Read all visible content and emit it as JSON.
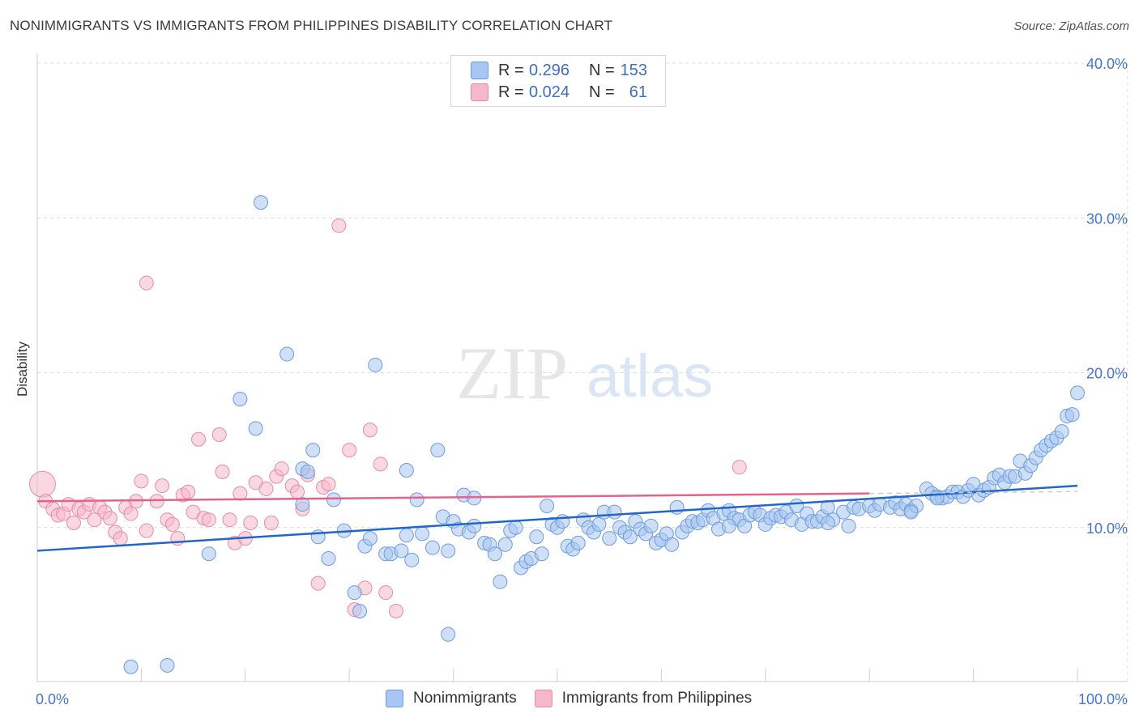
{
  "title": "NONIMMIGRANTS VS IMMIGRANTS FROM PHILIPPINES DISABILITY CORRELATION CHART",
  "source": "Source: ZipAtlas.com",
  "watermark": {
    "zip": "ZIP",
    "atlas": "atlas"
  },
  "legend_top": {
    "rows": [
      {
        "r_label": "R =",
        "r_value": "0.296",
        "n_label": "N =",
        "n_value": "153",
        "color": "#a8c6ef"
      },
      {
        "r_label": "R =",
        "r_value": "0.024",
        "n_label": "N =",
        "n_value": "61",
        "color": "#f5b8cb"
      }
    ]
  },
  "legend_bottom": {
    "items": [
      {
        "label": "Nonimmigrants",
        "color": "#a8c6ef"
      },
      {
        "label": "Immigrants from Philippines",
        "color": "#f5b8cb"
      }
    ]
  },
  "colors": {
    "blue_fill": "#a8c6ef",
    "blue_stroke": "#6d9be0",
    "blue_line": "#2166c9",
    "pink_fill": "#f5b8cb",
    "pink_stroke": "#e88aa8",
    "pink_line": "#e5628e",
    "tick_label": "#4476c9",
    "grid": "#dcdcdc"
  },
  "chart_data": {
    "type": "scatter",
    "xlabel": "",
    "ylabel": "Disability",
    "xlim": [
      0,
      100
    ],
    "ylim": [
      0,
      40
    ],
    "x_tick_labels": [
      "0.0%",
      "100.0%"
    ],
    "y_ticks": [
      10,
      20,
      30,
      40
    ],
    "y_tick_labels": [
      "10.0%",
      "20.0%",
      "30.0%",
      "40.0%"
    ],
    "grid": true,
    "series": [
      {
        "name": "Nonimmigrants",
        "trend": {
          "x": [
            0,
            100
          ],
          "y": [
            8.5,
            12.7
          ]
        },
        "points": [
          [
            9.0,
            1.0
          ],
          [
            12.5,
            1.1
          ],
          [
            21.5,
            31.0
          ],
          [
            24.0,
            21.2
          ],
          [
            32.5,
            20.5
          ],
          [
            19.5,
            18.3
          ],
          [
            21.0,
            16.4
          ],
          [
            26.5,
            15.0
          ],
          [
            38.5,
            15.0
          ],
          [
            25.5,
            13.8
          ],
          [
            35.5,
            13.7
          ],
          [
            16.5,
            8.3
          ],
          [
            25.5,
            11.5
          ],
          [
            26.0,
            13.6
          ],
          [
            28.5,
            11.8
          ],
          [
            36.5,
            11.8
          ],
          [
            41.0,
            12.1
          ],
          [
            42.0,
            11.9
          ],
          [
            27.0,
            9.4
          ],
          [
            28.0,
            8.0
          ],
          [
            29.5,
            9.8
          ],
          [
            30.5,
            5.8
          ],
          [
            31.0,
            4.6
          ],
          [
            31.5,
            8.8
          ],
          [
            32.0,
            9.3
          ],
          [
            33.5,
            8.3
          ],
          [
            34.0,
            8.3
          ],
          [
            35.0,
            8.5
          ],
          [
            35.5,
            9.5
          ],
          [
            36.0,
            7.9
          ],
          [
            37.0,
            9.6
          ],
          [
            38.0,
            8.7
          ],
          [
            39.0,
            10.7
          ],
          [
            39.5,
            8.5
          ],
          [
            39.5,
            3.1
          ],
          [
            40.0,
            10.4
          ],
          [
            40.5,
            9.9
          ],
          [
            41.5,
            9.7
          ],
          [
            42.0,
            10.1
          ],
          [
            43.0,
            9.0
          ],
          [
            43.5,
            8.9
          ],
          [
            44.0,
            8.3
          ],
          [
            44.5,
            6.5
          ],
          [
            45.0,
            8.9
          ],
          [
            45.5,
            9.8
          ],
          [
            46.0,
            10.0
          ],
          [
            46.5,
            7.4
          ],
          [
            47.0,
            7.8
          ],
          [
            47.5,
            8.0
          ],
          [
            48.0,
            9.4
          ],
          [
            48.5,
            8.3
          ],
          [
            49.0,
            11.4
          ],
          [
            49.5,
            10.2
          ],
          [
            50.0,
            10.0
          ],
          [
            50.5,
            10.4
          ],
          [
            51.0,
            8.8
          ],
          [
            51.5,
            8.6
          ],
          [
            52.0,
            9.0
          ],
          [
            52.5,
            10.5
          ],
          [
            53.0,
            10.0
          ],
          [
            53.5,
            9.7
          ],
          [
            54.0,
            10.2
          ],
          [
            54.5,
            11.0
          ],
          [
            55.0,
            9.3
          ],
          [
            55.5,
            11.0
          ],
          [
            56.0,
            10.0
          ],
          [
            56.5,
            9.7
          ],
          [
            57.0,
            9.4
          ],
          [
            57.5,
            10.4
          ],
          [
            58.0,
            9.9
          ],
          [
            58.5,
            9.6
          ],
          [
            59.0,
            10.1
          ],
          [
            59.5,
            9.0
          ],
          [
            60.0,
            9.2
          ],
          [
            60.5,
            9.6
          ],
          [
            61.0,
            8.9
          ],
          [
            61.5,
            11.3
          ],
          [
            62.0,
            9.7
          ],
          [
            62.5,
            10.1
          ],
          [
            63.0,
            10.4
          ],
          [
            63.5,
            10.3
          ],
          [
            64.0,
            10.5
          ],
          [
            64.5,
            11.1
          ],
          [
            65.0,
            10.6
          ],
          [
            65.5,
            9.9
          ],
          [
            66.0,
            10.9
          ],
          [
            66.5,
            11.1
          ],
          [
            67.0,
            10.6
          ],
          [
            67.5,
            10.5
          ],
          [
            68.0,
            10.1
          ],
          [
            68.5,
            10.8
          ],
          [
            69.0,
            11.0
          ],
          [
            69.5,
            10.8
          ],
          [
            70.0,
            10.2
          ],
          [
            70.5,
            10.6
          ],
          [
            71.0,
            10.8
          ],
          [
            71.5,
            10.7
          ],
          [
            72.0,
            11.0
          ],
          [
            72.5,
            10.5
          ],
          [
            73.0,
            11.4
          ],
          [
            73.5,
            10.2
          ],
          [
            74.0,
            10.9
          ],
          [
            74.5,
            10.4
          ],
          [
            75.0,
            10.4
          ],
          [
            75.5,
            10.7
          ],
          [
            76.0,
            11.3
          ],
          [
            76.5,
            10.5
          ],
          [
            77.5,
            11.0
          ],
          [
            78.0,
            10.1
          ],
          [
            78.5,
            11.3
          ],
          [
            79.0,
            11.2
          ],
          [
            80.0,
            11.4
          ],
          [
            80.5,
            11.1
          ],
          [
            81.0,
            11.5
          ],
          [
            82.0,
            11.3
          ],
          [
            82.5,
            11.6
          ],
          [
            83.0,
            11.2
          ],
          [
            83.5,
            11.5
          ],
          [
            84.0,
            11.1
          ],
          [
            84.5,
            11.4
          ],
          [
            85.5,
            12.5
          ],
          [
            86.0,
            12.2
          ],
          [
            86.5,
            12.0
          ],
          [
            87.0,
            11.9
          ],
          [
            87.5,
            12.0
          ],
          [
            88.0,
            12.3
          ],
          [
            88.5,
            12.3
          ],
          [
            89.0,
            12.0
          ],
          [
            89.5,
            12.4
          ],
          [
            90.0,
            12.8
          ],
          [
            90.5,
            12.1
          ],
          [
            91.0,
            12.4
          ],
          [
            91.5,
            12.6
          ],
          [
            92.0,
            13.2
          ],
          [
            92.5,
            13.4
          ],
          [
            93.0,
            12.9
          ],
          [
            93.5,
            13.3
          ],
          [
            94.0,
            13.3
          ],
          [
            94.5,
            14.3
          ],
          [
            95.0,
            13.5
          ],
          [
            95.5,
            14.0
          ],
          [
            96.0,
            14.5
          ],
          [
            96.5,
            15.0
          ],
          [
            97.0,
            15.3
          ],
          [
            97.5,
            15.6
          ],
          [
            98.0,
            15.8
          ],
          [
            98.5,
            16.2
          ],
          [
            99.0,
            17.2
          ],
          [
            99.5,
            17.3
          ],
          [
            100.0,
            18.7
          ],
          [
            86.5,
            11.9
          ],
          [
            84.0,
            11.0
          ],
          [
            76.0,
            10.3
          ],
          [
            66.5,
            10.1
          ]
        ]
      },
      {
        "name": "Immigrants from Philippines",
        "trend": {
          "x": [
            0,
            80
          ],
          "y": [
            11.7,
            12.2
          ]
        },
        "points": [
          [
            0.5,
            12.8
          ],
          [
            0.8,
            11.7
          ],
          [
            1.5,
            11.2
          ],
          [
            2.0,
            10.8
          ],
          [
            2.5,
            10.9
          ],
          [
            3.0,
            11.5
          ],
          [
            3.5,
            10.3
          ],
          [
            4.0,
            11.2
          ],
          [
            4.5,
            11.0
          ],
          [
            5.0,
            11.5
          ],
          [
            5.5,
            10.5
          ],
          [
            6.0,
            11.3
          ],
          [
            6.5,
            11.0
          ],
          [
            7.0,
            10.6
          ],
          [
            7.5,
            9.7
          ],
          [
            8.0,
            9.3
          ],
          [
            8.5,
            11.3
          ],
          [
            9.0,
            10.9
          ],
          [
            9.5,
            11.7
          ],
          [
            10.0,
            13.0
          ],
          [
            10.5,
            9.8
          ],
          [
            10.5,
            25.8
          ],
          [
            11.5,
            11.7
          ],
          [
            12.0,
            12.7
          ],
          [
            12.5,
            10.5
          ],
          [
            13.0,
            10.2
          ],
          [
            13.5,
            9.3
          ],
          [
            14.0,
            12.1
          ],
          [
            14.5,
            12.3
          ],
          [
            15.0,
            11.0
          ],
          [
            15.5,
            15.7
          ],
          [
            16.0,
            10.6
          ],
          [
            16.5,
            10.5
          ],
          [
            17.5,
            16.0
          ],
          [
            17.8,
            13.6
          ],
          [
            18.5,
            10.5
          ],
          [
            19.0,
            9.0
          ],
          [
            19.5,
            12.2
          ],
          [
            20.0,
            9.3
          ],
          [
            20.5,
            10.3
          ],
          [
            21.0,
            12.9
          ],
          [
            22.0,
            12.5
          ],
          [
            22.5,
            10.3
          ],
          [
            23.0,
            13.3
          ],
          [
            23.5,
            13.8
          ],
          [
            24.5,
            12.7
          ],
          [
            25.0,
            12.3
          ],
          [
            25.5,
            11.2
          ],
          [
            26.0,
            13.4
          ],
          [
            27.0,
            6.4
          ],
          [
            27.5,
            12.6
          ],
          [
            28.0,
            12.8
          ],
          [
            29.0,
            29.5
          ],
          [
            30.0,
            15.0
          ],
          [
            31.5,
            6.1
          ],
          [
            32.0,
            16.3
          ],
          [
            33.0,
            14.1
          ],
          [
            33.5,
            5.8
          ],
          [
            34.5,
            4.6
          ],
          [
            30.5,
            4.7
          ],
          [
            67.5,
            13.9
          ]
        ]
      }
    ]
  }
}
